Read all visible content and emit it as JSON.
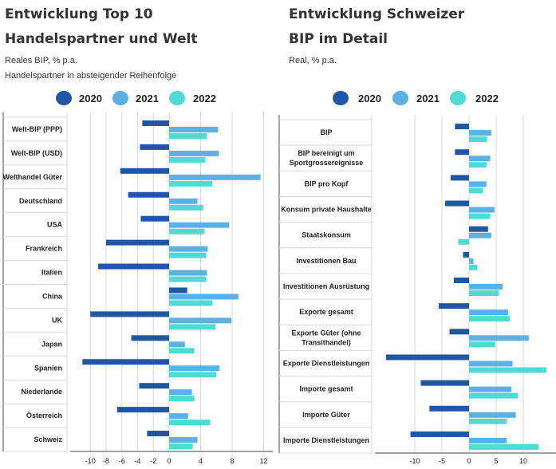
{
  "colors": {
    "y2020": "#1f56a6",
    "y2021": "#5bb1e6",
    "y2022": "#4fdbd3",
    "grid": "#d9d9d9",
    "axis": "#444444"
  },
  "left": {
    "title_line1": "Entwicklung Top 10",
    "title_line2": "Handelspartner und Welt",
    "subtitle1": "Reales BIP, % p.a.",
    "subtitle2": "Handelspartner in absteigender Reihenfolge"
  },
  "right": {
    "title_line1": "Entwicklung Schweizer",
    "title_line2": "BIP im Detail",
    "subtitle1": "Real, % p.a."
  },
  "chart_data": [
    {
      "type": "bar",
      "orientation": "horizontal",
      "title": "Entwicklung Top 10 Handelspartner und Welt",
      "subtitle": "Reales BIP, % p.a.",
      "categories": [
        "Welt-BIP (PPP)",
        "Welt-BIP (USD)",
        "Welthandel Güter",
        "Deutschland",
        "USA",
        "Frankreich",
        "Italien",
        "China",
        "UK",
        "Japan",
        "Spanien",
        "Niederlande",
        "Österreich",
        "Schweiz"
      ],
      "series": [
        {
          "name": "2020",
          "values": [
            -3.4,
            -3.7,
            -6.2,
            -5.2,
            -3.6,
            -8.0,
            -9.0,
            2.3,
            -10.0,
            -4.8,
            -11.0,
            -3.8,
            -6.6,
            -2.8
          ]
        },
        {
          "name": "2021",
          "values": [
            6.2,
            6.3,
            11.6,
            3.6,
            7.6,
            4.9,
            4.8,
            8.8,
            7.9,
            2.0,
            6.4,
            2.9,
            2.4,
            3.6
          ]
        },
        {
          "name": "2022",
          "values": [
            4.8,
            4.6,
            5.5,
            4.3,
            4.5,
            4.7,
            4.7,
            5.5,
            5.9,
            3.2,
            6.0,
            3.2,
            5.2,
            3.0
          ]
        }
      ],
      "xticks": [
        -10,
        -8,
        -6,
        -4,
        -2,
        0,
        4,
        8,
        12
      ],
      "xlim": [
        -11,
        12.5
      ],
      "legend": "top",
      "grid": true
    },
    {
      "type": "bar",
      "orientation": "horizontal",
      "title": "Entwicklung Schweizer BIP im Detail",
      "subtitle": "Real, % p.a.",
      "categories": [
        "BIP",
        "BIP bereinigt um Sportgrossereignisse",
        "BIP pro Kopf",
        "Konsum private Haushalte",
        "Staatskonsum",
        "Investitionen Bau",
        "Investitionen Ausrüstung",
        "Exporte gesamt",
        "Exporte Güter (ohne Transithandel)",
        "Exporte Dienstleistungen",
        "Importe gesamt",
        "Importe Güter",
        "Importe Dienstleistungen"
      ],
      "category_lines": [
        [
          "BIP"
        ],
        [
          "BIP bereinigt um",
          "Sportgrossereignisse"
        ],
        [
          "BIP pro Kopf"
        ],
        [
          "Konsum private Haushalte"
        ],
        [
          "Staatskonsum"
        ],
        [
          "Investitionen Bau"
        ],
        [
          "Investitionen Ausrüstung"
        ],
        [
          "Exporte gesamt"
        ],
        [
          "Exporte Güter (ohne",
          "Transithandel)"
        ],
        [
          "Exporte Dienstleistungen"
        ],
        [
          "Importe gesamt"
        ],
        [
          "Importe Güter"
        ],
        [
          "Importe Dienstleistungen"
        ]
      ],
      "series": [
        {
          "name": "2020",
          "values": [
            -2.6,
            -2.6,
            -3.4,
            -4.4,
            3.5,
            -1.1,
            -2.8,
            -5.6,
            -3.6,
            -15.3,
            -8.9,
            -7.3,
            -10.8
          ]
        },
        {
          "name": "2021",
          "values": [
            4.1,
            3.9,
            3.2,
            4.7,
            4.1,
            0.8,
            6.2,
            7.2,
            11.0,
            8.0,
            7.8,
            8.6,
            6.9
          ]
        },
        {
          "name": "2022",
          "values": [
            3.3,
            3.2,
            2.5,
            3.9,
            -2.0,
            1.5,
            5.5,
            7.5,
            4.8,
            14.3,
            9.0,
            6.9,
            12.8
          ]
        }
      ],
      "xticks": [
        -10,
        -5,
        0,
        5,
        10
      ],
      "xlim": [
        -16,
        15
      ],
      "legend": "top",
      "grid": true
    }
  ]
}
